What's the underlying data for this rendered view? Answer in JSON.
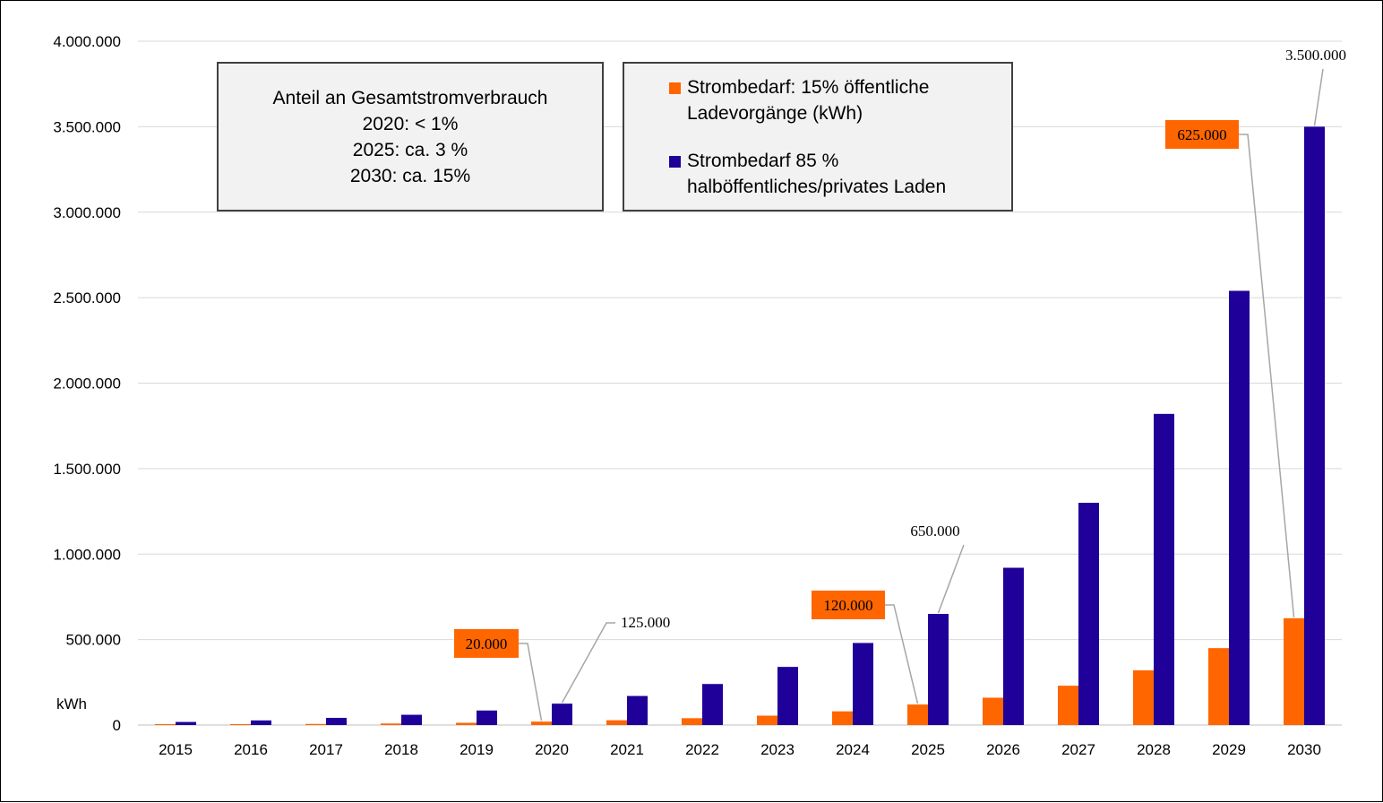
{
  "chart_data": {
    "type": "bar",
    "categories": [
      "2015",
      "2016",
      "2017",
      "2018",
      "2019",
      "2020",
      "2021",
      "2022",
      "2023",
      "2024",
      "2025",
      "2026",
      "2027",
      "2028",
      "2029",
      "2030"
    ],
    "series": [
      {
        "name": "Strombedarf: 15% öffentliche Ladevorgänge (kWh)",
        "color": "#ff6600",
        "values": [
          2500,
          4000,
          6500,
          9000,
          13000,
          20000,
          28000,
          40000,
          55000,
          80000,
          120000,
          160000,
          230000,
          320000,
          450000,
          625000
        ]
      },
      {
        "name": "Strombedarf 85 % halböffentliches/privates Laden",
        "color": "#1f0099",
        "values": [
          18000,
          27000,
          42000,
          60000,
          85000,
          125000,
          170000,
          240000,
          340000,
          480000,
          650000,
          920000,
          1300000,
          1820000,
          2540000,
          3500000
        ]
      }
    ],
    "ylim": [
      0,
      4000000
    ],
    "yticks": [
      "0",
      "500.000",
      "1.000.000",
      "1.500.000",
      "2.000.000",
      "2.500.000",
      "3.000.000",
      "3.500.000",
      "4.000.000"
    ],
    "ytick_values": [
      0,
      500000,
      1000000,
      1500000,
      2000000,
      2500000,
      3000000,
      3500000,
      4000000
    ],
    "ylabel": "kWh",
    "grid": true,
    "legend_position": "top-center",
    "annotations": [
      {
        "text": "20.000",
        "series": 0,
        "category": "2020",
        "boxed": true
      },
      {
        "text": "125.000",
        "series": 1,
        "category": "2020",
        "boxed": false
      },
      {
        "text": "120.000",
        "series": 0,
        "category": "2025",
        "boxed": true
      },
      {
        "text": "650.000",
        "series": 1,
        "category": "2025",
        "boxed": false
      },
      {
        "text": "625.000",
        "series": 0,
        "category": "2030",
        "boxed": true
      },
      {
        "text": "3.500.000",
        "series": 1,
        "category": "2030",
        "boxed": false
      }
    ]
  },
  "note": {
    "lines": [
      "Anteil an Gesamtstromverbrauch",
      "2020: < 1%",
      "2025: ca. 3 %",
      "2030: ca. 15%"
    ]
  },
  "legend": {
    "items": [
      {
        "line1": "Strombedarf: 15% öffentliche",
        "line2": "Ladevorgänge (kWh)",
        "color": "#ff6600"
      },
      {
        "line1": "Strombedarf 85 %",
        "line2": "halböffentliches/privates Laden",
        "color": "#1f0099"
      }
    ]
  }
}
